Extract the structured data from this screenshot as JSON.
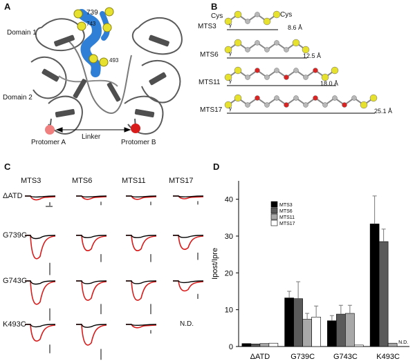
{
  "panelA": {
    "letter": "A",
    "domain1": "Domain 1",
    "domain2": "Domain 2",
    "res739": "739",
    "res743": "743",
    "res493": "493",
    "protomerA": "Protomer A",
    "protomerB": "Protomer B",
    "linker": "Linker",
    "colors": {
      "protein": "#5a5a5a",
      "helix": "#2f7fd6",
      "sphere": "#e6e02e",
      "endA": "#f08080",
      "endB": "#d81b1b"
    }
  },
  "panelB": {
    "letter": "B",
    "cys_left": "Cys",
    "cys_right": "Cys",
    "gamma": "γ",
    "linkers": [
      {
        "name": "MTS3",
        "length": "8.6 Å",
        "units": 4
      },
      {
        "name": "MTS6",
        "length": "12.5 Å",
        "units": 7
      },
      {
        "name": "MTS11",
        "length": "18.0 Å",
        "units": 10
      },
      {
        "name": "MTS17",
        "length": "25.1 Å",
        "units": 14
      }
    ]
  },
  "panelC": {
    "letter": "C",
    "columns": [
      "MTS3",
      "MTS6",
      "MTS11",
      "MTS17"
    ],
    "rows": [
      "ΔATD",
      "G739C",
      "G743C",
      "K493C"
    ],
    "nd": "N.D.",
    "depth": [
      [
        0.12,
        0.1,
        0.1,
        0.08
      ],
      [
        0.85,
        0.55,
        0.55,
        0.5
      ],
      [
        0.85,
        0.7,
        0.7,
        0.35
      ],
      [
        0.6,
        0.75,
        0.1,
        null
      ]
    ]
  },
  "chart_data": {
    "type": "bar",
    "letter": "D",
    "ylabel": "Ipost/Ipre",
    "ylim": [
      0,
      45
    ],
    "yticks": [
      0,
      10,
      20,
      30,
      40
    ],
    "categories": [
      "ΔATD",
      "G739C",
      "G743C",
      "K493C"
    ],
    "series": [
      {
        "name": "MTS3",
        "color": "#000000",
        "values": [
          0.8,
          13.2,
          7.0,
          33.3
        ],
        "errors": [
          0,
          1.8,
          1.4,
          7.6
        ]
      },
      {
        "name": "MTS6",
        "color": "#5a5a5a",
        "values": [
          0.7,
          13.0,
          8.8,
          28.5
        ],
        "errors": [
          0,
          4.6,
          2.4,
          3.4
        ]
      },
      {
        "name": "MTS11",
        "color": "#a8a8a8",
        "values": [
          0.8,
          7.4,
          9.0,
          0.9
        ],
        "errors": [
          0,
          1.6,
          2.2,
          0
        ]
      },
      {
        "name": "MTS17",
        "color": "#ffffff",
        "values": [
          0.9,
          8.0,
          0.4,
          null
        ],
        "errors": [
          0,
          3.0,
          0,
          0
        ]
      }
    ],
    "annotations": [
      {
        "category": "K493C",
        "series": "MTS17",
        "text": "N.D."
      }
    ],
    "legend_position": "top-left"
  }
}
